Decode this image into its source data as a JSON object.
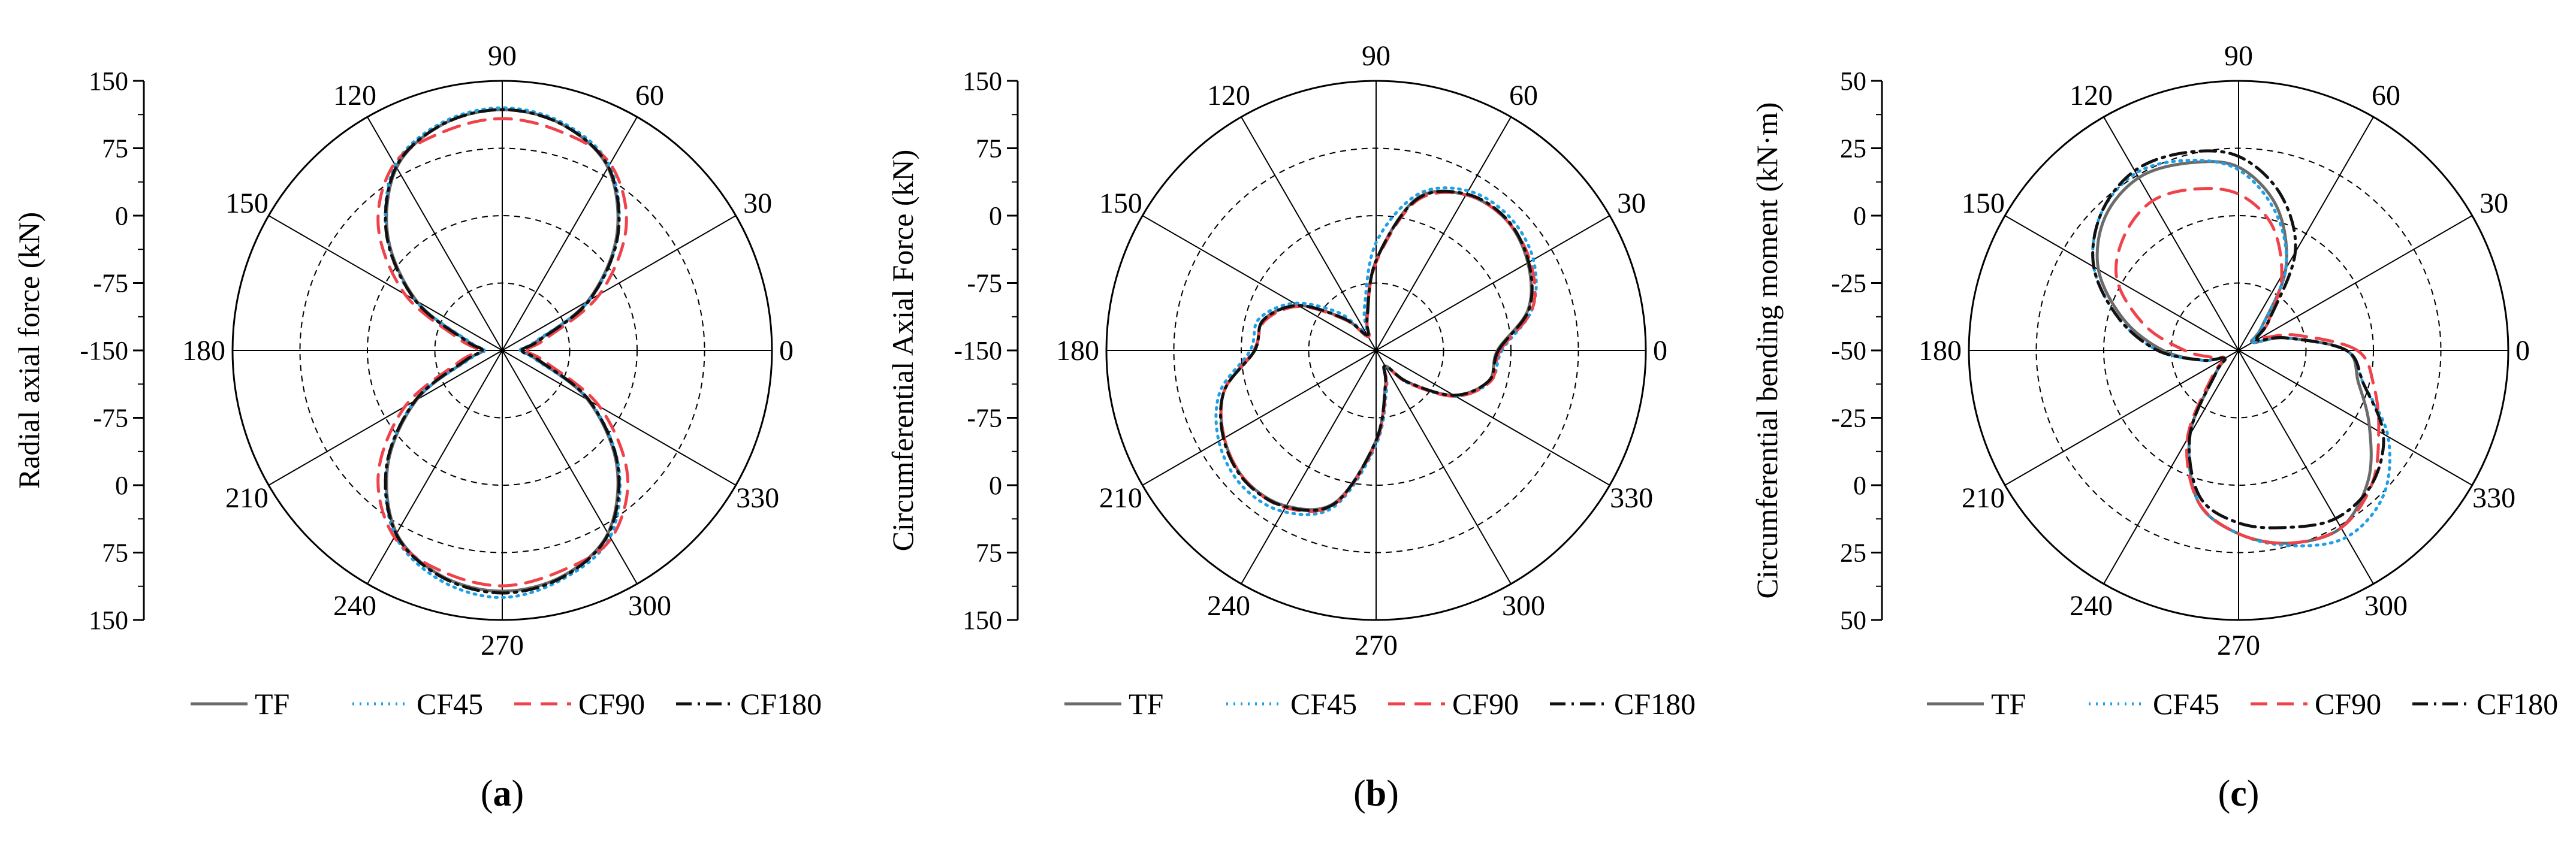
{
  "figure": {
    "series_styles": [
      {
        "name": "TF",
        "color": "#6b6b6b",
        "dash": "none"
      },
      {
        "name": "CF45",
        "color": "#1fa0e6",
        "dash": "dotted"
      },
      {
        "name": "CF90",
        "color": "#f0424a",
        "dash": "dashed"
      },
      {
        "name": "CF180",
        "color": "#111111",
        "dash": "dashdot"
      }
    ]
  },
  "chart_data": [
    {
      "type": "polar-line",
      "panel_label": "a",
      "ylabel": "Radial axial force (kN)",
      "radial_ticks": [
        "150",
        "75",
        "0",
        "-75",
        "-150",
        "-75",
        "0",
        "75",
        "150"
      ],
      "angle_labels": [
        "0",
        "30",
        "60",
        "90",
        "120",
        "150",
        "180",
        "210",
        "240",
        "270",
        "300",
        "330"
      ],
      "radial_range": [
        -150,
        150
      ],
      "legend": [
        "TF",
        "CF45",
        "CF90",
        "CF180"
      ],
      "series": [
        {
          "name": "TF",
          "angles": [
            0,
            15,
            30,
            45,
            60,
            75,
            90,
            105,
            120,
            135,
            150,
            165,
            180,
            195,
            210,
            225,
            240,
            255,
            270,
            285,
            300,
            315,
            330,
            345
          ],
          "values": [
            -128,
            -110,
            -40,
            30,
            85,
            110,
            118,
            110,
            85,
            30,
            -40,
            -110,
            -128,
            -110,
            -40,
            30,
            85,
            110,
            118,
            110,
            85,
            30,
            -40,
            -110
          ]
        },
        {
          "name": "CF45",
          "angles": [
            0,
            15,
            30,
            45,
            60,
            75,
            90,
            105,
            120,
            135,
            150,
            165,
            180,
            195,
            210,
            225,
            240,
            255,
            270,
            285,
            300,
            315,
            330,
            345
          ],
          "values": [
            -130,
            -112,
            -38,
            32,
            88,
            112,
            120,
            112,
            88,
            32,
            -38,
            -112,
            -130,
            -112,
            -38,
            32,
            88,
            115,
            125,
            113,
            90,
            33,
            -38,
            -112
          ]
        },
        {
          "name": "CF90",
          "angles": [
            0,
            15,
            30,
            45,
            60,
            75,
            90,
            105,
            120,
            135,
            150,
            165,
            180,
            195,
            210,
            225,
            240,
            255,
            270,
            285,
            300,
            315,
            330,
            345
          ],
          "values": [
            -122,
            -100,
            -25,
            45,
            90,
            102,
            108,
            102,
            90,
            45,
            -25,
            -100,
            -122,
            -100,
            -25,
            45,
            90,
            105,
            112,
            104,
            92,
            47,
            -25,
            -100
          ]
        },
        {
          "name": "CF180",
          "angles": [
            0,
            15,
            30,
            45,
            60,
            75,
            90,
            105,
            120,
            135,
            150,
            165,
            180,
            195,
            210,
            225,
            240,
            255,
            270,
            285,
            300,
            315,
            330,
            345
          ],
          "values": [
            -128,
            -108,
            -38,
            32,
            86,
            110,
            118,
            110,
            86,
            32,
            -38,
            -108,
            -128,
            -108,
            -38,
            32,
            86,
            111,
            120,
            111,
            86,
            32,
            -38,
            -108
          ]
        }
      ]
    },
    {
      "type": "polar-line",
      "panel_label": "b",
      "ylabel": "Circumferential Axial Force (kN)",
      "radial_ticks": [
        "150",
        "75",
        "0",
        "-75",
        "-150",
        "-75",
        "0",
        "75",
        "150"
      ],
      "angle_labels": [
        "0",
        "30",
        "60",
        "90",
        "120",
        "150",
        "180",
        "210",
        "240",
        "270",
        "300",
        "330"
      ],
      "radial_range": [
        -150,
        150
      ],
      "legend": [
        "TF",
        "CF45",
        "CF90",
        "CF180"
      ],
      "series": [
        {
          "name": "TF",
          "angles": [
            0,
            15,
            30,
            45,
            60,
            75,
            90,
            105,
            120,
            135,
            150,
            165,
            180,
            195,
            210,
            225,
            240,
            255,
            270,
            285,
            300,
            315,
            330,
            345
          ],
          "values": [
            -15,
            25,
            45,
            55,
            50,
            25,
            -50,
            -110,
            -130,
            -100,
            -50,
            -20,
            -15,
            25,
            45,
            55,
            50,
            25,
            -50,
            -110,
            -130,
            -100,
            -50,
            -20
          ]
        },
        {
          "name": "CF45",
          "angles": [
            0,
            15,
            30,
            45,
            60,
            75,
            90,
            105,
            120,
            135,
            150,
            165,
            180,
            195,
            210,
            225,
            240,
            255,
            270,
            285,
            300,
            315,
            330,
            345
          ],
          "values": [
            -10,
            30,
            52,
            60,
            55,
            30,
            -30,
            -100,
            -125,
            -90,
            -45,
            -15,
            -10,
            30,
            52,
            62,
            57,
            30,
            -45,
            -105,
            -128,
            -98,
            -48,
            -18
          ]
        },
        {
          "name": "CF90",
          "angles": [
            0,
            15,
            30,
            45,
            60,
            75,
            90,
            105,
            120,
            135,
            150,
            165,
            180,
            195,
            210,
            225,
            240,
            255,
            270,
            285,
            300,
            315,
            330,
            345
          ],
          "values": [
            -12,
            30,
            48,
            55,
            50,
            22,
            -52,
            -112,
            -132,
            -102,
            -52,
            -22,
            -14,
            25,
            45,
            55,
            52,
            27,
            -48,
            -108,
            -128,
            -98,
            -48,
            -18
          ]
        },
        {
          "name": "CF180",
          "angles": [
            0,
            15,
            30,
            45,
            60,
            75,
            90,
            105,
            120,
            135,
            150,
            165,
            180,
            195,
            210,
            225,
            240,
            255,
            270,
            285,
            300,
            315,
            330,
            345
          ],
          "values": [
            -14,
            26,
            46,
            56,
            51,
            24,
            -50,
            -112,
            -130,
            -100,
            -50,
            -20,
            -15,
            25,
            46,
            56,
            51,
            26,
            -50,
            -110,
            -130,
            -100,
            -50,
            -20
          ]
        }
      ]
    },
    {
      "type": "polar-line",
      "panel_label": "c",
      "ylabel": "Circumferential bending moment (kN·m)",
      "radial_ticks": [
        "50",
        "25",
        "0",
        "-25",
        "-50",
        "-25",
        "0",
        "25",
        "50"
      ],
      "angle_labels": [
        "0",
        "30",
        "60",
        "90",
        "120",
        "150",
        "180",
        "210",
        "240",
        "270",
        "300",
        "330"
      ],
      "radial_range": [
        -50,
        50
      ],
      "legend": [
        "TF",
        "CF45",
        "CF90",
        "CF180"
      ],
      "series": [
        {
          "name": "TF",
          "angles": [
            0,
            15,
            30,
            45,
            60,
            75,
            90,
            105,
            120,
            135,
            150,
            165,
            180,
            195,
            210,
            225,
            240,
            255,
            270,
            285,
            300,
            315,
            330,
            345
          ],
          "values": [
            -10,
            -32,
            -44,
            -38,
            -15,
            5,
            18,
            22,
            24,
            20,
            10,
            -6,
            -22,
            -36,
            -44,
            -38,
            -14,
            8,
            18,
            24,
            26,
            18,
            6,
            -4
          ]
        },
        {
          "name": "CF45",
          "angles": [
            0,
            15,
            30,
            45,
            60,
            75,
            90,
            105,
            120,
            135,
            150,
            165,
            180,
            195,
            210,
            225,
            240,
            255,
            270,
            285,
            300,
            315,
            330,
            345
          ],
          "values": [
            -10,
            -32,
            -44,
            -38,
            -15,
            3,
            17,
            23,
            26,
            22,
            12,
            -4,
            -20,
            -36,
            -44,
            -38,
            -14,
            8,
            18,
            25,
            30,
            26,
            14,
            -2
          ]
        },
        {
          "name": "CF90",
          "angles": [
            0,
            15,
            30,
            45,
            60,
            75,
            90,
            105,
            120,
            135,
            150,
            165,
            180,
            195,
            210,
            225,
            240,
            255,
            270,
            285,
            300,
            315,
            330,
            345
          ],
          "values": [
            -6,
            -28,
            -40,
            -34,
            -18,
            -2,
            8,
            12,
            14,
            10,
            2,
            -14,
            -30,
            -40,
            -44,
            -36,
            -12,
            8,
            18,
            24,
            26,
            20,
            10,
            2
          ]
        },
        {
          "name": "CF180",
          "angles": [
            0,
            15,
            30,
            45,
            60,
            75,
            90,
            105,
            120,
            135,
            150,
            165,
            180,
            195,
            210,
            225,
            240,
            255,
            270,
            285,
            300,
            315,
            330,
            345
          ],
          "values": [
            -10,
            -32,
            -42,
            -34,
            -8,
            10,
            22,
            26,
            27,
            22,
            12,
            -4,
            -20,
            -36,
            -44,
            -38,
            -14,
            6,
            14,
            18,
            22,
            20,
            12,
            -2
          ]
        }
      ]
    }
  ]
}
